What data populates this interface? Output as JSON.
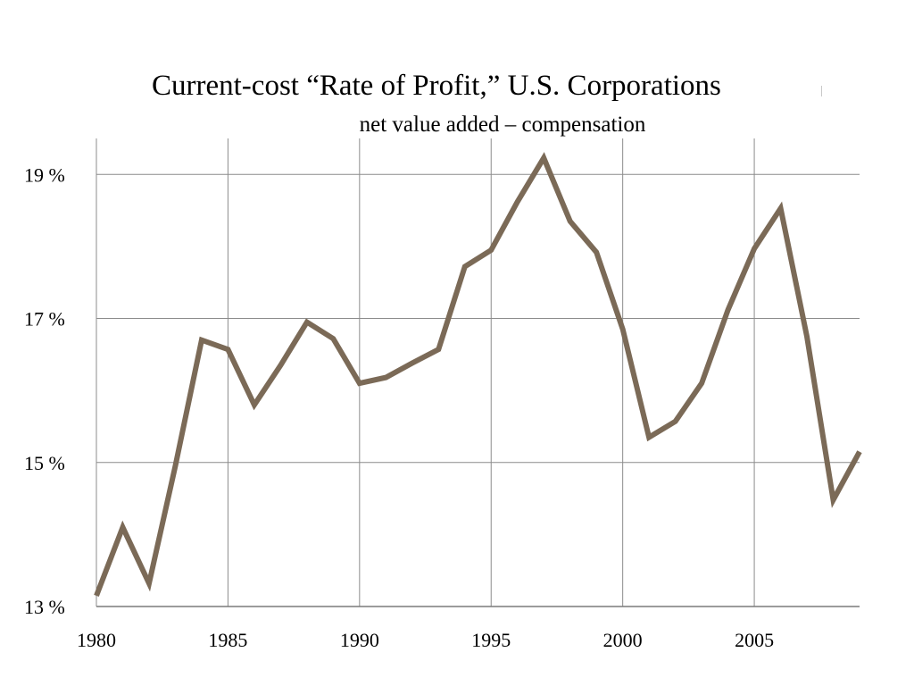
{
  "chart_data": {
    "type": "line",
    "title": "Current-cost “Rate of Profit,” U.S. Corporations",
    "subtitle": "net value added – compensation",
    "xlabel": "",
    "ylabel": "",
    "xlim": [
      1980,
      2009
    ],
    "ylim": [
      13,
      19.5
    ],
    "x_ticks": [
      1980,
      1985,
      1990,
      1995,
      2000,
      2005
    ],
    "x_tick_labels": [
      "1980",
      "1985",
      "1990",
      "1995",
      "2000",
      "2005"
    ],
    "y_ticks": [
      13,
      15,
      17,
      19
    ],
    "y_tick_labels": [
      "13 %",
      "15 %",
      "17 %",
      "19 %"
    ],
    "grid": true,
    "legend": "none",
    "line_color": "#7b6a57",
    "series": [
      {
        "x": [
          1980,
          1981,
          1982,
          1983,
          1984,
          1985,
          1986,
          1987,
          1988,
          1989,
          1990,
          1991,
          1992,
          1993,
          1994,
          1995,
          1996,
          1997,
          1998,
          1999,
          2000,
          2001,
          2002,
          2003,
          2004,
          2005,
          2006,
          2007,
          2008,
          2009
        ],
        "values": [
          13.15,
          14.1,
          13.32,
          14.95,
          16.7,
          16.57,
          15.8,
          16.35,
          16.95,
          16.72,
          16.1,
          16.18,
          16.38,
          16.57,
          17.72,
          17.95,
          18.62,
          19.23,
          18.35,
          17.92,
          16.85,
          15.35,
          15.57,
          16.1,
          17.12,
          17.97,
          18.53,
          16.75,
          14.48,
          15.15
        ]
      }
    ]
  }
}
